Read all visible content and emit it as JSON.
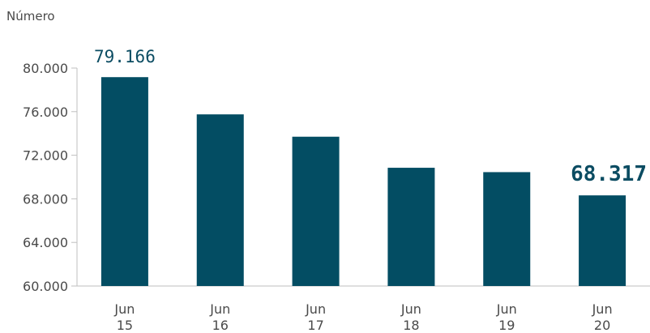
{
  "chart_data": {
    "type": "bar",
    "ylabel": "Número",
    "categories": [
      {
        "line1": "Jun",
        "line2": "15"
      },
      {
        "line1": "Jun",
        "line2": "16"
      },
      {
        "line1": "Jun",
        "line2": "17"
      },
      {
        "line1": "Jun",
        "line2": "18"
      },
      {
        "line1": "Jun",
        "line2": "19"
      },
      {
        "line1": "Jun",
        "line2": "20"
      }
    ],
    "values": [
      79166,
      75750,
      73700,
      70850,
      70450,
      68317
    ],
    "ylim": [
      60000,
      80000
    ],
    "yticks": [
      60000,
      64000,
      68000,
      72000,
      76000,
      80000
    ],
    "ytick_labels": [
      "60.000",
      "64.000",
      "68.000",
      "72.000",
      "76.000",
      "80.000"
    ],
    "data_labels": [
      {
        "index": 0,
        "text": "79.166",
        "bold": false
      },
      {
        "index": 5,
        "text": "68.317",
        "bold": true
      }
    ],
    "bar_color": "#034d63",
    "grid": false,
    "legend": "none"
  }
}
